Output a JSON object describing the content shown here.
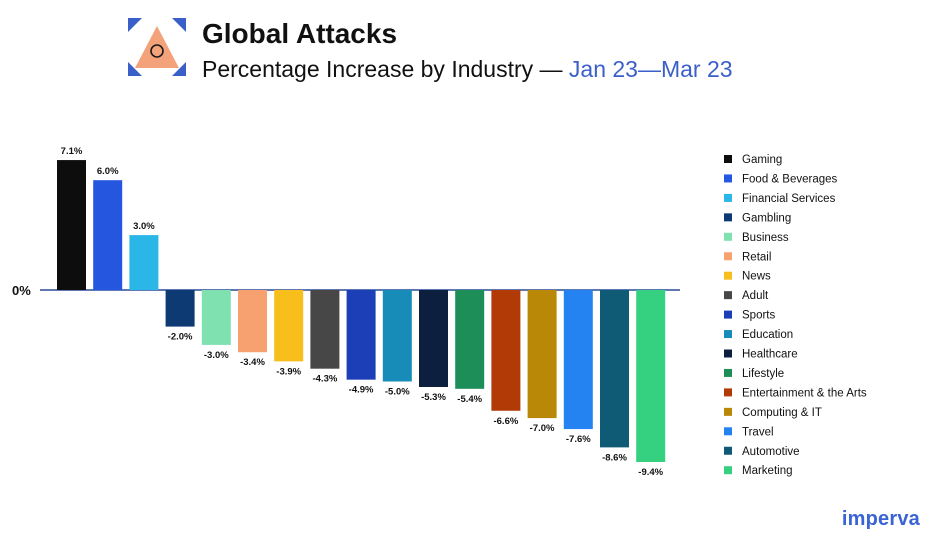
{
  "header": {
    "title": "Global Attacks",
    "subtitle_main": "Percentage Increase by Industry — ",
    "subtitle_range": "Jan 23—Mar 23"
  },
  "brand": {
    "name": "imperva"
  },
  "colors": {
    "logo_triangle": "#f4a27a",
    "logo_corners": "#3a5fc8",
    "baseline": "#2a4a9a",
    "text": "#111111"
  },
  "chart_data": {
    "type": "bar",
    "title": "Global Attacks",
    "subtitle": "Percentage Increase by Industry — Jan 23—Mar 23",
    "xlabel": "",
    "ylabel": "",
    "ylim": [
      -9.4,
      7.1
    ],
    "zero_label": "0%",
    "grid": false,
    "legend_position": "right",
    "categories": [
      "Gaming",
      "Food & Beverages",
      "Financial Services",
      "Gambling",
      "Business",
      "Retail",
      "News",
      "Adult",
      "Sports",
      "Education",
      "Healthcare",
      "Lifestyle",
      "Entertainment & the Arts",
      "Computing & IT",
      "Travel",
      "Automotive",
      "Marketing"
    ],
    "values": [
      7.1,
      6.0,
      3.0,
      -2.0,
      -3.0,
      -3.4,
      -3.9,
      -4.3,
      -4.9,
      -5.0,
      -5.3,
      -5.4,
      -6.6,
      -7.0,
      -7.6,
      -8.6,
      -9.4
    ],
    "value_labels": [
      "7.1%",
      "6.0%",
      "3.0%",
      "-2.0%",
      "-3.0%",
      "-3.4%",
      "-3.9%",
      "-4.3%",
      "-4.9%",
      "-5.0%",
      "-5.3%",
      "-5.4%",
      "-6.6%",
      "-7.0%",
      "-7.6%",
      "-8.6%",
      "-9.4%"
    ],
    "colors": [
      "#0d0d0d",
      "#2456e0",
      "#2bb6e8",
      "#0d3a73",
      "#7fe0b0",
      "#f7a070",
      "#f8be1c",
      "#474747",
      "#1c3fb8",
      "#178cb8",
      "#0c1f3f",
      "#1e8e58",
      "#b23a06",
      "#b88806",
      "#2483f0",
      "#0f5a75",
      "#35d080"
    ]
  }
}
